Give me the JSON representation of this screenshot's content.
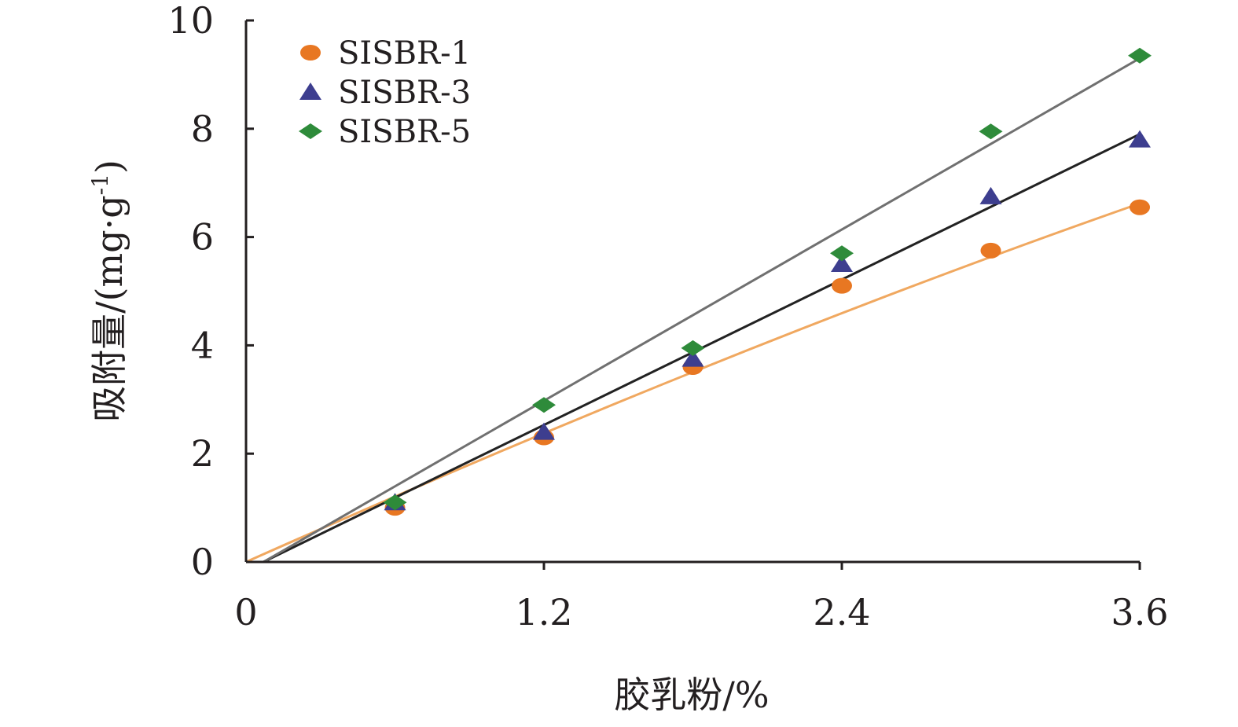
{
  "chart_data": {
    "type": "scatter",
    "xlabel": "胶乳粉/%",
    "ylabel": "吸附量/(mg·g",
    "ylabel_sup": "-1",
    "ylabel_close": ")",
    "xlim": [
      0,
      3.6
    ],
    "ylim": [
      0,
      10
    ],
    "xticks": [
      {
        "value": 0,
        "label": "0"
      },
      {
        "value": 1.2,
        "label": "1.2"
      },
      {
        "value": 2.4,
        "label": "2.4"
      },
      {
        "value": 3.6,
        "label": "3.6"
      }
    ],
    "yticks": [
      {
        "value": 0,
        "label": "0"
      },
      {
        "value": 2,
        "label": "2"
      },
      {
        "value": 4,
        "label": "4"
      },
      {
        "value": 6,
        "label": "6"
      },
      {
        "value": 8,
        "label": "8"
      },
      {
        "value": 10,
        "label": "10"
      }
    ],
    "x": [
      0.6,
      1.2,
      1.8,
      2.4,
      3.0,
      3.6
    ],
    "legend_position": "top-left",
    "grid": false,
    "series": [
      {
        "name": "SISBR-1",
        "marker": "circle",
        "color": "#e87722",
        "fit_color": "#f0a860",
        "values": [
          1.0,
          2.3,
          3.6,
          5.1,
          5.75,
          6.55
        ],
        "fit": {
          "type": "polynomial",
          "points": [
            [
              0,
              0
            ],
            [
              1.2,
              2.45
            ],
            [
              2.4,
              4.7
            ],
            [
              3.6,
              6.62
            ]
          ]
        }
      },
      {
        "name": "SISBR-3",
        "marker": "triangle",
        "color": "#3d3e8f",
        "fit_color": "#222222",
        "values": [
          1.1,
          2.4,
          3.75,
          5.5,
          6.75,
          7.8
        ],
        "fit": {
          "type": "linear",
          "points": [
            [
              0.07,
              0
            ],
            [
              3.6,
              7.9
            ]
          ]
        }
      },
      {
        "name": "SISBR-5",
        "marker": "diamond",
        "color": "#2e8b3a",
        "fit_color": "#707070",
        "values": [
          1.1,
          2.9,
          3.95,
          5.7,
          7.95,
          9.35
        ],
        "fit": {
          "type": "linear",
          "points": [
            [
              0.07,
              0
            ],
            [
              3.6,
              9.3
            ]
          ]
        }
      }
    ]
  }
}
